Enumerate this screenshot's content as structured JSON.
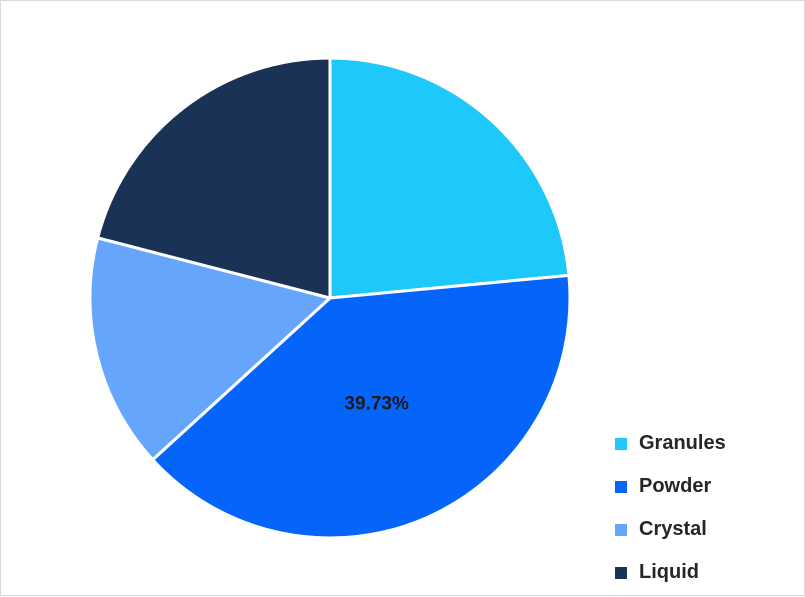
{
  "chart_data": {
    "type": "pie",
    "title": "",
    "categories": [
      "Granules",
      "Powder",
      "Crystal",
      "Liquid"
    ],
    "values": [
      23.5,
      39.73,
      15.8,
      20.97
    ],
    "colors": [
      "#1fc8fa",
      "#0565fb",
      "#65a6fc",
      "#1b3257"
    ],
    "data_labels": [
      "",
      "39.73%",
      "",
      ""
    ],
    "legend_position": "right-bottom"
  }
}
